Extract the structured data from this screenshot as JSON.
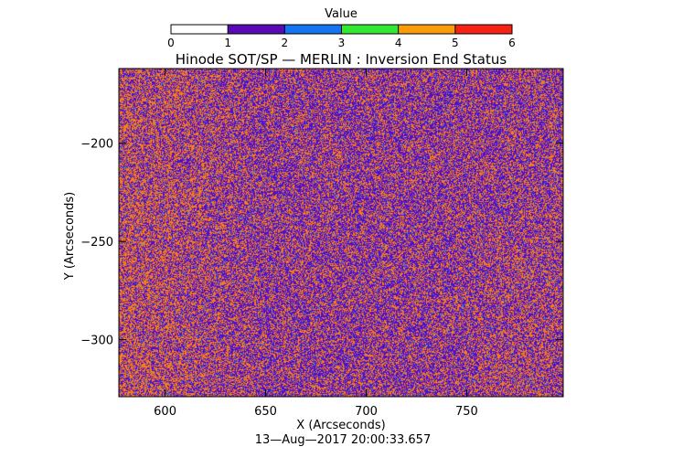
{
  "chart_data": {
    "type": "heatmap",
    "title": "Hinode SOT/SP — MERLIN : Inversion End Status",
    "xlabel": "X (Arcseconds)",
    "ylabel": "Y (Arcseconds)",
    "timestamp": "13—Aug—2017 20:00:33.657",
    "xlim": [
      577,
      798
    ],
    "ylim": [
      -329,
      -162
    ],
    "x_ticks": [
      {
        "value": 600,
        "label": "600"
      },
      {
        "value": 650,
        "label": "650"
      },
      {
        "value": 700,
        "label": "700"
      },
      {
        "value": 750,
        "label": "750"
      }
    ],
    "y_ticks": [
      {
        "value": -200,
        "label": "−200"
      },
      {
        "value": -250,
        "label": "−250"
      },
      {
        "value": -300,
        "label": "−300"
      }
    ],
    "colorbar": {
      "title": "Value",
      "range": [
        0,
        6
      ],
      "ticks": [
        {
          "value": 0,
          "label": "0"
        },
        {
          "value": 1,
          "label": "1"
        },
        {
          "value": 2,
          "label": "2"
        },
        {
          "value": 3,
          "label": "3"
        },
        {
          "value": 4,
          "label": "4"
        },
        {
          "value": 5,
          "label": "5"
        },
        {
          "value": 6,
          "label": "6"
        }
      ],
      "bins": [
        {
          "from": 0,
          "to": 1,
          "color": "#ffffff"
        },
        {
          "from": 1,
          "to": 2,
          "color": "#5a0ab4"
        },
        {
          "from": 2,
          "to": 3,
          "color": "#1473f0"
        },
        {
          "from": 3,
          "to": 4,
          "color": "#32e632"
        },
        {
          "from": 4,
          "to": 5,
          "color": "#fa9b0a"
        },
        {
          "from": 5,
          "to": 6,
          "color": "#f52314"
        }
      ]
    },
    "value_mix": [
      {
        "value": 1,
        "fraction": 0.55,
        "color": "#4b0fd2"
      },
      {
        "value": 2,
        "fraction": 0.04,
        "color": "#1e82f5"
      },
      {
        "value": 4,
        "fraction": 0.41,
        "color": "#fa7d14"
      }
    ]
  }
}
